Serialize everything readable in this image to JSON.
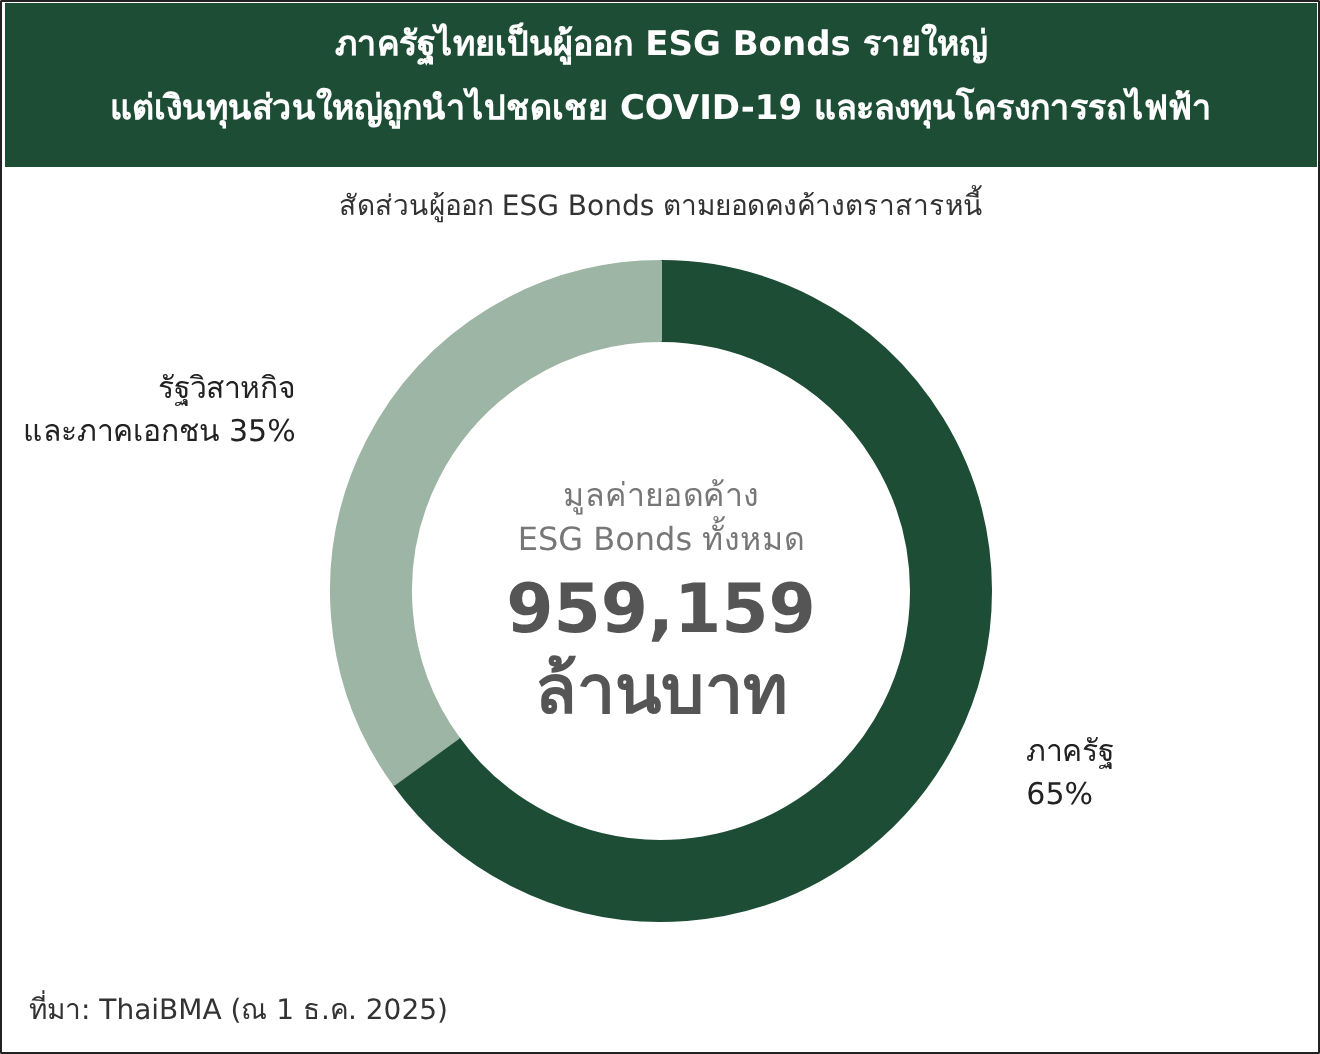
{
  "chart_data": {
    "type": "donut",
    "title": "ภาครัฐไทยเป็นผู้ออก ESG Bonds รายใหญ่\nแต่เงินทุนส่วนใหญ่ถูกนำไปชดเชย COVID-19 และลงทุนโครงการรถไฟฟ้า",
    "subtitle": "สัดส่วนผู้ออก ESG Bonds ตามยอดคงค้างตราสารหนี้",
    "categories": [
      "ภาครัฐ",
      "รัฐวิสาหกิจ\nและภาคเอกชน"
    ],
    "values": [
      65,
      35
    ],
    "colors": [
      "#1e4d36",
      "#9db5a4"
    ],
    "value_labels": [
      "65%",
      "35%"
    ],
    "annotations": [
      "มูลค่ายอดค้าง",
      "ESG Bonds ทั้งหมด",
      "959,159",
      "ล้านบาท",
      "ที่มา: ThaiBMA (ณ 1 ธ.ค. 2025)"
    ]
  }
}
